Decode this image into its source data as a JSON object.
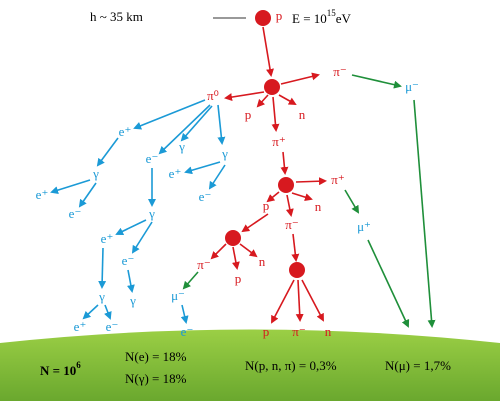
{
  "header": {
    "height": "h ~ 35 km",
    "energy": {
      "text": "E = 10",
      "exponent": "15",
      "unit": "eV"
    }
  },
  "particles": [
    "p",
    "π⁻",
    "μ⁻",
    "π⁰",
    "p",
    "n",
    "π⁺",
    "π⁺",
    "p",
    "n",
    "π⁻",
    "μ⁺",
    "π⁻",
    "p",
    "n",
    "μ⁻",
    "e⁻",
    "p",
    "π⁻",
    "n",
    "e⁺",
    "γ",
    "e⁻",
    "γ",
    "e⁺",
    "e⁻",
    "γ",
    "e⁺",
    "e⁻",
    "γ",
    "e⁺",
    "e⁻",
    "γ",
    "γ",
    "e⁺",
    "e⁻"
  ],
  "ground": {
    "total": {
      "text": "N = 10",
      "exponent": "6"
    },
    "electrons": "N(e) = 18%",
    "gammas": "N(γ) = 18%",
    "hadrons": "N(p, n, π) = 0,3%",
    "muons": "N(μ) = 1,7%"
  }
}
